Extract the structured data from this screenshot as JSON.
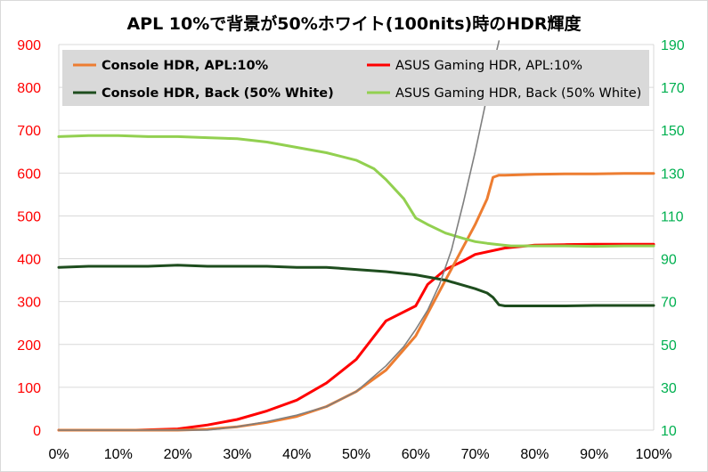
{
  "chart_data": {
    "type": "line",
    "title": "APL 10%で背景が50%ホワイト(100nits)時のHDR輝度",
    "x_ticks": [
      "0%",
      "10%",
      "20%",
      "30%",
      "40%",
      "50%",
      "60%",
      "70%",
      "80%",
      "90%",
      "100%"
    ],
    "xlim": [
      0,
      100
    ],
    "ylim_left": [
      0,
      900
    ],
    "y_ticks_left": [
      "0",
      "100",
      "200",
      "300",
      "400",
      "500",
      "600",
      "700",
      "800",
      "900"
    ],
    "ylim_right": [
      10,
      190
    ],
    "y_ticks_right": [
      "10",
      "30",
      "50",
      "70",
      "90",
      "110",
      "130",
      "150",
      "170",
      "190"
    ],
    "grid": "horizontal",
    "legend_position": "top",
    "series": [
      {
        "name": "Console HDR, APL:10%",
        "color": "#ed7d31",
        "axis": "left",
        "bold": true,
        "x": [
          0,
          20,
          25,
          30,
          35,
          40,
          45,
          50,
          55,
          60,
          65,
          70,
          72,
          73,
          74,
          75,
          80,
          85,
          90,
          95,
          100
        ],
        "y": [
          0,
          0,
          2,
          8,
          18,
          32,
          55,
          90,
          140,
          220,
          350,
          480,
          540,
          590,
          595,
          595,
          597,
          598,
          598,
          599,
          599
        ]
      },
      {
        "name": "ASUS Gaming HDR, APL:10%",
        "color": "#ff0000",
        "axis": "left",
        "bold": false,
        "x": [
          0,
          13,
          20,
          25,
          30,
          35,
          40,
          45,
          50,
          55,
          60,
          62,
          65,
          68,
          70,
          75,
          80,
          85,
          90,
          95,
          100
        ],
        "y": [
          0,
          0,
          3,
          12,
          25,
          45,
          70,
          110,
          165,
          255,
          290,
          340,
          375,
          395,
          410,
          425,
          432,
          433,
          434,
          434,
          434
        ]
      },
      {
        "name": "Console HDR, Back (50% White)",
        "color": "#1e4d1e",
        "axis": "right",
        "bold": true,
        "x": [
          0,
          5,
          10,
          15,
          20,
          25,
          30,
          35,
          40,
          45,
          50,
          55,
          60,
          65,
          70,
          72,
          73,
          74,
          75,
          80,
          85,
          90,
          95,
          100
        ],
        "y": [
          86,
          86.5,
          86.5,
          86.5,
          87,
          86.5,
          86.5,
          86.5,
          86,
          86,
          85,
          84,
          82.5,
          80,
          76,
          74,
          72,
          68.5,
          68,
          68,
          68,
          68.2,
          68.2,
          68.2
        ]
      },
      {
        "name": "ASUS Gaming HDR, Back (50% White)",
        "color": "#92d050",
        "axis": "right",
        "bold": false,
        "x": [
          0,
          5,
          10,
          15,
          20,
          25,
          30,
          35,
          40,
          45,
          50,
          53,
          55,
          58,
          60,
          62,
          65,
          68,
          70,
          72,
          74,
          76,
          80,
          85,
          90,
          95,
          100
        ],
        "y": [
          147,
          147.5,
          147.5,
          147,
          147,
          146.5,
          146,
          144.5,
          142,
          139.5,
          136,
          132,
          127,
          118,
          109,
          106,
          102,
          99.5,
          98,
          97.2,
          96.6,
          96,
          96,
          96,
          95.8,
          96,
          96
        ]
      },
      {
        "name": "",
        "color": "#7f7f7f",
        "axis": "left",
        "bold": false,
        "legend": false,
        "x": [
          0,
          25,
          30,
          35,
          40,
          45,
          50,
          55,
          58,
          60,
          62,
          64,
          66,
          68,
          70,
          72,
          73,
          74
        ],
        "y": [
          0,
          0,
          8,
          20,
          35,
          55,
          90,
          150,
          195,
          235,
          280,
          340,
          420,
          530,
          650,
          780,
          850,
          910
        ]
      }
    ]
  }
}
